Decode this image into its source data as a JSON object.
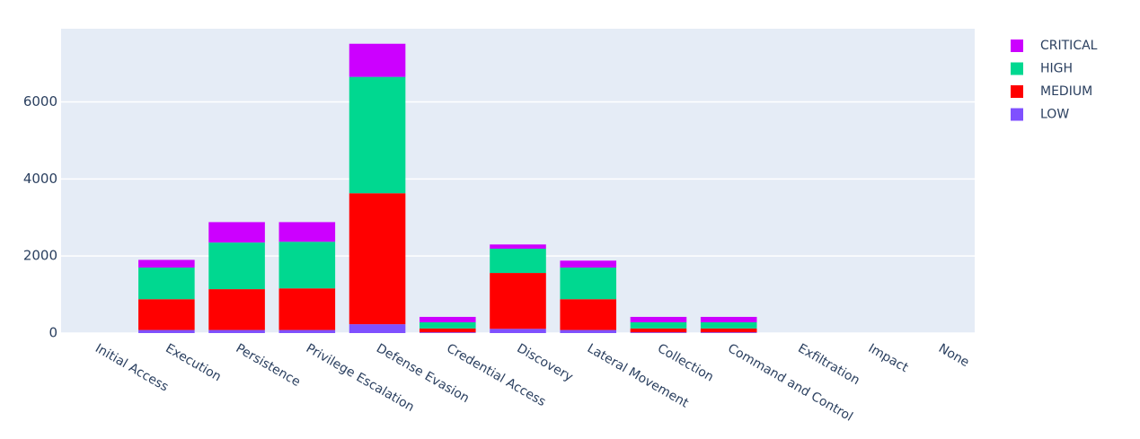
{
  "chart_data": {
    "type": "bar",
    "categories": [
      "Initial Access",
      "Execution",
      "Persistence",
      "Privilege Escalation",
      "Defense Evasion",
      "Credential Access",
      "Discovery",
      "Lateral Movement",
      "Collection",
      "Command and Control",
      "Exfiltration",
      "Impact",
      "None"
    ],
    "series": [
      {
        "name": "LOW",
        "color": "#7f50ff",
        "values": [
          0,
          80,
          80,
          80,
          230,
          20,
          110,
          80,
          20,
          20,
          0,
          0,
          0
        ]
      },
      {
        "name": "MEDIUM",
        "color": "#ff0000",
        "values": [
          0,
          800,
          1060,
          1080,
          3400,
          100,
          1450,
          800,
          100,
          100,
          0,
          0,
          0
        ]
      },
      {
        "name": "HIGH",
        "color": "#00d890",
        "values": [
          0,
          820,
          1210,
          1210,
          3020,
          160,
          630,
          820,
          160,
          160,
          0,
          0,
          0
        ]
      },
      {
        "name": "CRITICAL",
        "color": "#cc00ff",
        "values": [
          0,
          200,
          530,
          510,
          860,
          140,
          110,
          180,
          140,
          140,
          0,
          0,
          0
        ]
      }
    ],
    "ylim": [
      0,
      7900
    ],
    "yticks": [
      0,
      2000,
      4000,
      6000
    ],
    "grid": true
  }
}
